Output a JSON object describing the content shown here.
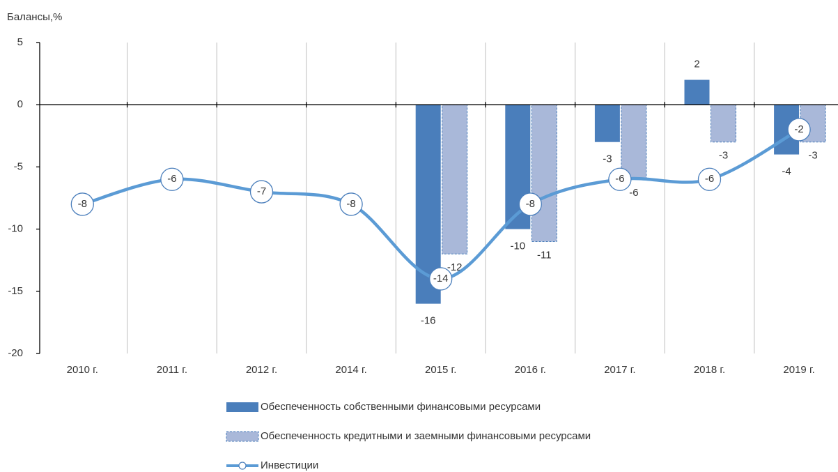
{
  "chart_data": {
    "type": "bar",
    "ylabel": "Балансы,%",
    "categories": [
      "2010 г.",
      "2011 г.",
      "2012 г.",
      "2014 г.",
      "2015 г.",
      "2016 г.",
      "2017 г.",
      "2018 г.",
      "2019 г."
    ],
    "series": [
      {
        "name": "Обеспеченность собственными финансовыми ресурсами",
        "type": "bar",
        "color": "#4a7ebb",
        "values": [
          null,
          null,
          null,
          null,
          -16,
          -10,
          -3,
          2,
          -4
        ]
      },
      {
        "name": "Обеспеченность кредитными и заемными финансовыми ресурсами",
        "type": "bar",
        "color": "#a9b8d9",
        "edgecolor": "#4a7ebb",
        "values": [
          null,
          null,
          null,
          null,
          -12,
          -11,
          -6,
          -3,
          -3
        ]
      },
      {
        "name": "Инвестиции",
        "type": "line",
        "color": "#5b9bd5",
        "values": [
          -8,
          -6,
          -7,
          -8,
          -14,
          -8,
          -6,
          -6,
          -2
        ]
      }
    ],
    "ylim": [
      -20,
      5
    ],
    "yticks": [
      -20,
      -15,
      -10,
      -5,
      0,
      5
    ],
    "grid": true
  }
}
